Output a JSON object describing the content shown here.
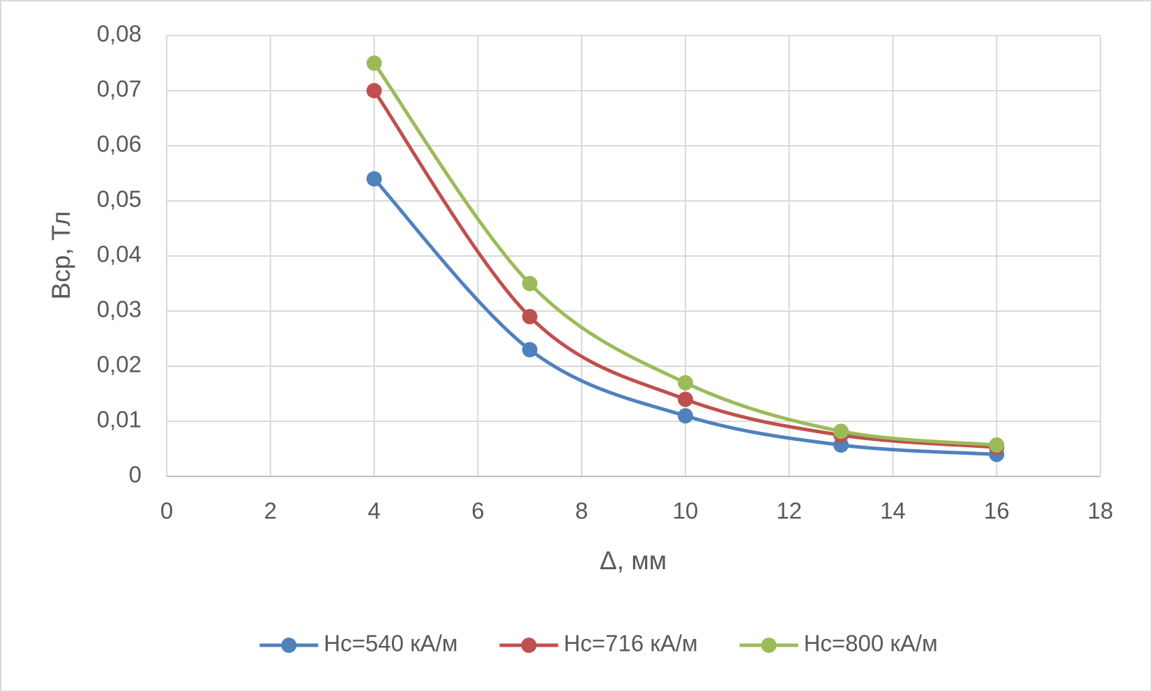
{
  "chart_data": {
    "type": "line",
    "smooth": true,
    "grid": true,
    "legend": "bottom",
    "xlabel": "Δ, мм",
    "ylabel": "Вср, Тл",
    "x": [
      4,
      7,
      10,
      13,
      16
    ],
    "series": [
      {
        "name": "Hc=540 кА/м",
        "color": "#4f81bd",
        "values": [
          0.054,
          0.023,
          0.011,
          0.0057,
          0.004
        ]
      },
      {
        "name": "Hc=716 кА/м",
        "color": "#c0504d",
        "values": [
          0.07,
          0.029,
          0.014,
          0.0075,
          0.0053
        ]
      },
      {
        "name": "Hc=800 кА/м",
        "color": "#9bbb59",
        "values": [
          0.075,
          0.035,
          0.017,
          0.0082,
          0.0057
        ]
      }
    ],
    "xlim": [
      0,
      18
    ],
    "xticks": [
      0,
      2,
      4,
      6,
      8,
      10,
      12,
      14,
      16,
      18
    ],
    "ylim": [
      0,
      0.08
    ],
    "yticks": [
      0,
      {
        "value": 0.01,
        "label": "0,01"
      },
      {
        "value": 0.02,
        "label": "0,02"
      },
      {
        "value": 0.03,
        "label": "0,03"
      },
      {
        "value": 0.04,
        "label": "0,04"
      },
      {
        "value": 0.05,
        "label": "0,05"
      },
      {
        "value": 0.06,
        "label": "0,06"
      },
      {
        "value": 0.07,
        "label": "0,07"
      },
      {
        "value": 0.08,
        "label": "0,08"
      }
    ]
  }
}
